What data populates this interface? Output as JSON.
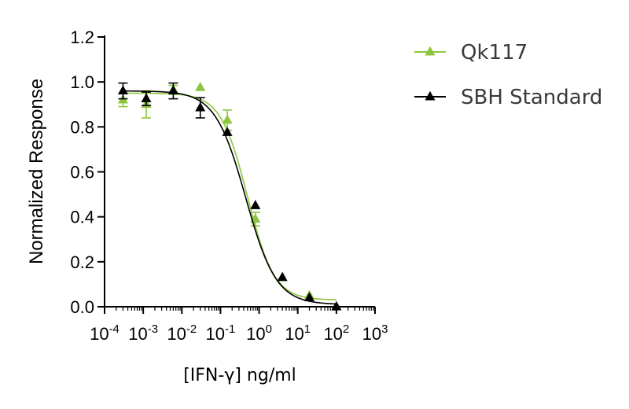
{
  "chart_data": {
    "type": "scatter",
    "xlabel": "[IFN-γ] ng/ml",
    "ylabel": "Normalized Response",
    "x_scale": "log",
    "xlim": [
      0.0001,
      1000
    ],
    "ylim": [
      0,
      1.2
    ],
    "x_ticks": [
      {
        "value": 0.0001,
        "base": "10",
        "exp": "-4"
      },
      {
        "value": 0.001,
        "base": "10",
        "exp": "-3"
      },
      {
        "value": 0.01,
        "base": "10",
        "exp": "-2"
      },
      {
        "value": 0.1,
        "base": "10",
        "exp": "-1"
      },
      {
        "value": 1,
        "base": "10",
        "exp": "0"
      },
      {
        "value": 10,
        "base": "10",
        "exp": "1"
      },
      {
        "value": 100,
        "base": "10",
        "exp": "2"
      },
      {
        "value": 1000,
        "base": "10",
        "exp": "3"
      }
    ],
    "y_ticks": [
      {
        "value": 0.0,
        "label": "0.0"
      },
      {
        "value": 0.2,
        "label": "0.2"
      },
      {
        "value": 0.4,
        "label": "0.4"
      },
      {
        "value": 0.6,
        "label": "0.6"
      },
      {
        "value": 0.8,
        "label": "0.8"
      },
      {
        "value": 1.0,
        "label": "1.0"
      },
      {
        "value": 1.2,
        "label": "1.2"
      }
    ],
    "grid": false,
    "legend_position": "top-right",
    "series": [
      {
        "name": "Qk117",
        "color": "#8cc63f",
        "marker": "triangle",
        "fit": {
          "top": 0.95,
          "bottom": 0.03,
          "ec50": 0.5,
          "hill": 1.25
        },
        "points": [
          {
            "x": 0.0003,
            "y": 0.92,
            "err": 0.03
          },
          {
            "x": 0.0012,
            "y": 0.9,
            "err": 0.06
          },
          {
            "x": 0.006,
            "y": 0.965,
            "err": 0.02
          },
          {
            "x": 0.03,
            "y": 0.975,
            "err": 0
          },
          {
            "x": 0.15,
            "y": 0.83,
            "err": 0.045
          },
          {
            "x": 0.8,
            "y": 0.39,
            "err": 0.03
          },
          {
            "x": 4.0,
            "y": 0.13,
            "err": 0
          },
          {
            "x": 20,
            "y": 0.05,
            "err": 0
          },
          {
            "x": 100,
            "y": 0.0,
            "err": 0
          }
        ]
      },
      {
        "name": "SBH Standard",
        "color": "#000000",
        "marker": "triangle",
        "fit": {
          "top": 0.96,
          "bottom": 0.01,
          "ec50": 0.45,
          "hill": 1.1
        },
        "points": [
          {
            "x": 0.0003,
            "y": 0.96,
            "err": 0.035
          },
          {
            "x": 0.0012,
            "y": 0.925,
            "err": 0.03
          },
          {
            "x": 0.006,
            "y": 0.96,
            "err": 0.035
          },
          {
            "x": 0.03,
            "y": 0.885,
            "err": 0.045
          },
          {
            "x": 0.15,
            "y": 0.775,
            "err": 0
          },
          {
            "x": 0.8,
            "y": 0.45,
            "err": 0
          },
          {
            "x": 4.0,
            "y": 0.13,
            "err": 0
          },
          {
            "x": 20,
            "y": 0.04,
            "err": 0
          },
          {
            "x": 100,
            "y": 0.0,
            "err": 0
          }
        ]
      }
    ]
  }
}
